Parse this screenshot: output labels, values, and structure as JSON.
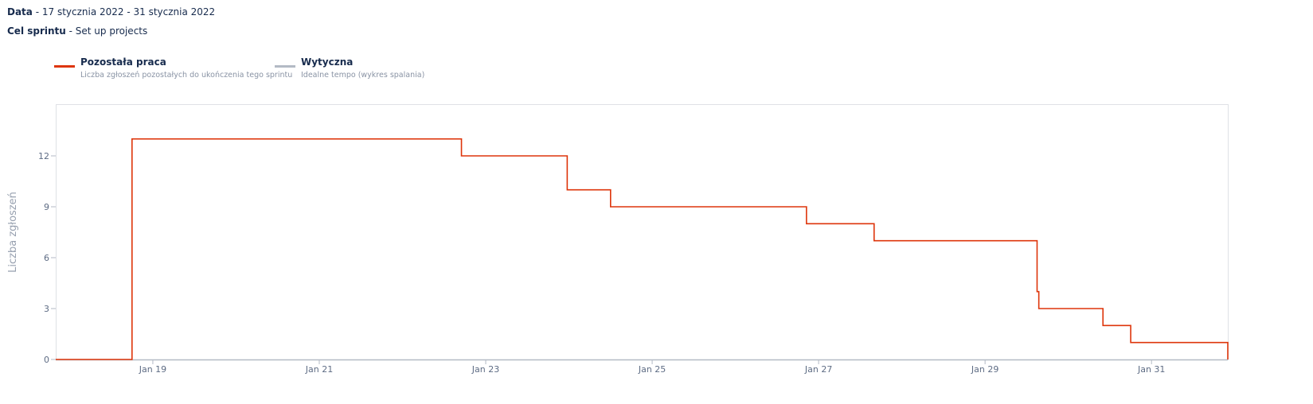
{
  "header": {
    "date_label": "Data",
    "date_value": " - 17 stycznia 2022 - 31 stycznia 2022",
    "goal_label": "Cel sprintu",
    "goal_value": " - Set up projects"
  },
  "legend": [
    {
      "name": "Pozostała praca",
      "description": "Liczba zgłoszeń pozostałych do ukończenia tego sprintu",
      "color": "#de350b"
    },
    {
      "name": "Wytyczna",
      "description": "Idealne tempo (wykres spalania)",
      "color": "#b3bac5"
    }
  ],
  "chart_data": {
    "type": "line",
    "ylabel": "Liczba zgłoszeń",
    "y_ticks": [
      0,
      3,
      6,
      9,
      12
    ],
    "ylim": [
      0,
      15
    ],
    "x_ticks": [
      "Jan 19",
      "Jan 21",
      "Jan 23",
      "Jan 25",
      "Jan 27",
      "Jan 29",
      "Jan 31"
    ],
    "xlim": [
      "2022-01-17 20:00",
      "2022-01-31 22:00"
    ],
    "legend_position": "top-left",
    "series": [
      {
        "name": "Pozostała praca",
        "color": "#de350b",
        "step": true,
        "points": [
          {
            "x": "2022-01-17 20:00",
            "y": 0
          },
          {
            "x": "2022-01-18 18:00",
            "y": 13
          },
          {
            "x": "2022-01-22 17:00",
            "y": 12
          },
          {
            "x": "2022-01-23 23:30",
            "y": 10
          },
          {
            "x": "2022-01-24 12:00",
            "y": 9
          },
          {
            "x": "2022-01-26 20:30",
            "y": 8
          },
          {
            "x": "2022-01-27 16:00",
            "y": 7
          },
          {
            "x": "2022-01-29 15:00",
            "y": 4
          },
          {
            "x": "2022-01-29 15:30",
            "y": 3
          },
          {
            "x": "2022-01-30 10:00",
            "y": 2
          },
          {
            "x": "2022-01-30 18:00",
            "y": 1
          },
          {
            "x": "2022-01-31 22:00",
            "y": 0
          }
        ]
      },
      {
        "name": "Wytyczna",
        "color": "#b3bac5",
        "points": []
      }
    ]
  }
}
